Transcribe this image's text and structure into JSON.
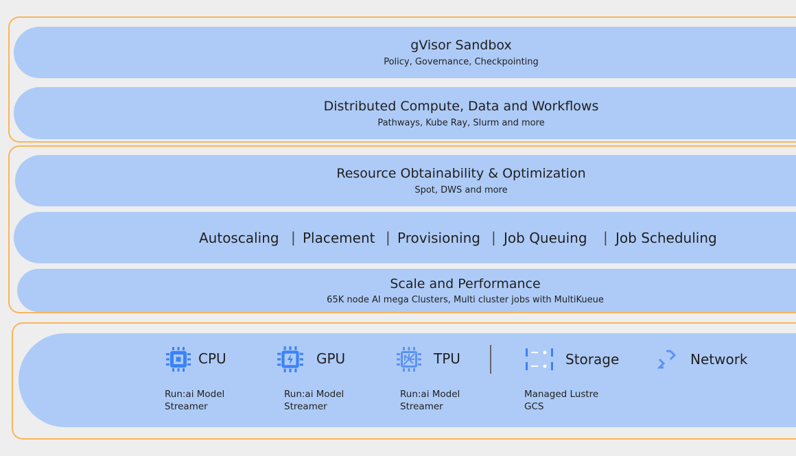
{
  "colors": {
    "background": "#eeeeee",
    "layer_fill": "#aecbf7",
    "group_border": "#f9b55b",
    "icon_blue": "#3b82f4"
  },
  "layers": {
    "sandbox": {
      "title": "gVisor Sandbox",
      "subtitle": "Policy, Governance, Checkpointing"
    },
    "distributed": {
      "title": "Distributed Compute, Data and Workflows",
      "subtitle": "Pathways, Kube Ray, Slurm and more"
    },
    "obtainability": {
      "title": "Resource Obtainability & Optimization",
      "subtitle": "Spot, DWS and more"
    },
    "scheduling": {
      "items": [
        "Autoscaling",
        "Placement",
        "Provisioning",
        "Job Queuing",
        "Job Scheduling"
      ],
      "separator": "|"
    },
    "scale": {
      "title": "Scale and Performance",
      "subtitle": "65K node AI mega Clusters, Multi cluster jobs with MultiKueue"
    }
  },
  "resources": [
    {
      "icon": "cpu-chip-icon",
      "label": "CPU",
      "sub1": "Run:ai Model",
      "sub2": "Streamer"
    },
    {
      "icon": "gpu-chip-icon",
      "label": "GPU",
      "sub1": "Run:ai Model",
      "sub2": "Streamer"
    },
    {
      "icon": "tpu-chip-icon",
      "label": "TPU",
      "sub1": "Run:ai Model",
      "sub2": "Streamer"
    },
    {
      "icon": "storage-icon",
      "label": "Storage",
      "sub1": "Managed Lustre",
      "sub2": "GCS"
    },
    {
      "icon": "network-icon",
      "label": "Network"
    }
  ]
}
